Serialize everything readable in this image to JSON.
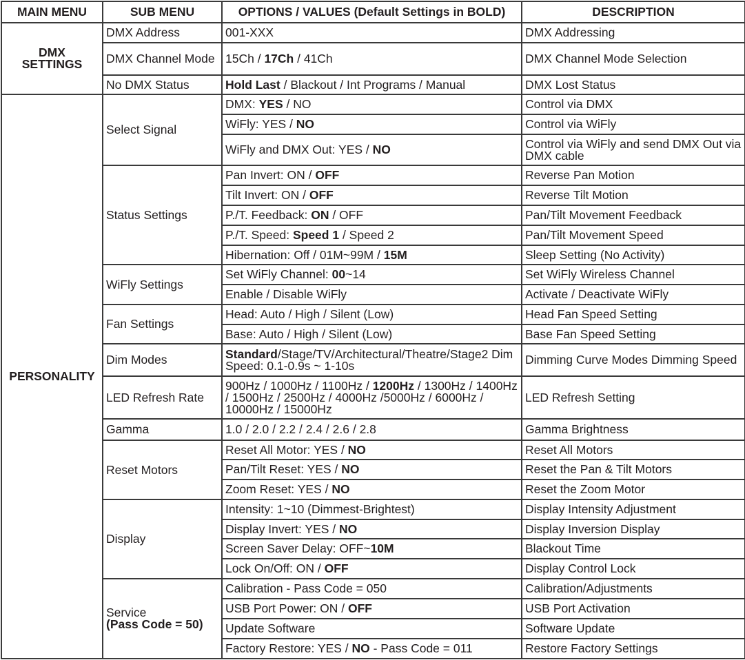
{
  "header": [
    "MAIN MENU",
    "SUB MENU",
    "OPTIONS / VALUES (Default Settings in BOLD)",
    "DESCRIPTION"
  ],
  "sections": [
    {
      "main": "DMX SETTINGS",
      "subs": [
        {
          "label": [
            {
              "t": "DMX Address"
            }
          ],
          "items": [
            {
              "option": [
                {
                  "t": "001-XXX"
                }
              ],
              "desc": "DMX Addressing"
            }
          ]
        },
        {
          "label": [
            {
              "t": "DMX Channel Mode"
            }
          ],
          "items": [
            {
              "option": [
                {
                  "t": "15Ch / "
                },
                {
                  "t": "17Ch",
                  "b": true
                },
                {
                  "t": " / 41Ch"
                }
              ],
              "desc": "DMX Channel Mode Selection"
            }
          ]
        },
        {
          "label": [
            {
              "t": "No DMX Status"
            }
          ],
          "items": [
            {
              "option": [
                {
                  "t": "Hold Last",
                  "b": true
                },
                {
                  "t": " / Blackout / Int Programs / Manual"
                }
              ],
              "desc": "DMX Lost Status"
            }
          ]
        }
      ]
    },
    {
      "main": "PERSONALITY",
      "subs": [
        {
          "label": [
            {
              "t": "Select Signal"
            }
          ],
          "items": [
            {
              "option": [
                {
                  "t": "DMX: "
                },
                {
                  "t": "YES",
                  "b": true
                },
                {
                  "t": " / NO"
                }
              ],
              "desc": "Control via DMX"
            },
            {
              "option": [
                {
                  "t": "WiFly: YES / "
                },
                {
                  "t": "NO",
                  "b": true
                }
              ],
              "desc": "Control via WiFly"
            },
            {
              "option": [
                {
                  "t": "WiFly and DMX Out: YES / "
                },
                {
                  "t": "NO",
                  "b": true
                }
              ],
              "desc": "Control via WiFly and send DMX Out via DMX cable"
            }
          ]
        },
        {
          "label": [
            {
              "t": "Status Settings"
            }
          ],
          "items": [
            {
              "option": [
                {
                  "t": "Pan Invert: ON / "
                },
                {
                  "t": "OFF",
                  "b": true
                }
              ],
              "desc": "Reverse Pan Motion"
            },
            {
              "option": [
                {
                  "t": "Tilt Invert: ON / "
                },
                {
                  "t": "OFF",
                  "b": true
                }
              ],
              "desc": "Reverse Tilt Motion"
            },
            {
              "option": [
                {
                  "t": "P./T. Feedback: "
                },
                {
                  "t": "ON",
                  "b": true
                },
                {
                  "t": " / OFF"
                }
              ],
              "desc": "Pan/Tilt Movement Feedback"
            },
            {
              "option": [
                {
                  "t": "P./T. Speed: "
                },
                {
                  "t": "Speed 1",
                  "b": true
                },
                {
                  "t": " / Speed 2"
                }
              ],
              "desc": "Pan/Tilt Movement Speed"
            },
            {
              "option": [
                {
                  "t": "Hibernation: Off / 01M~99M / "
                },
                {
                  "t": "15M",
                  "b": true
                }
              ],
              "desc": "Sleep Setting (No Activity)"
            }
          ]
        },
        {
          "label": [
            {
              "t": "WiFly Settings"
            }
          ],
          "items": [
            {
              "option": [
                {
                  "t": "Set WiFly Channel: "
                },
                {
                  "t": "00",
                  "b": true
                },
                {
                  "t": "~14"
                }
              ],
              "desc": "Set WiFly Wireless Channel"
            },
            {
              "option": [
                {
                  "t": "Enable / Disable WiFly"
                }
              ],
              "desc": "Activate / Deactivate WiFly"
            }
          ]
        },
        {
          "label": [
            {
              "t": "Fan Settings"
            }
          ],
          "items": [
            {
              "option": [
                {
                  "t": "Head: Auto / High / Silent (Low)"
                }
              ],
              "desc": "Head Fan Speed Setting"
            },
            {
              "option": [
                {
                  "t": "Base: Auto / High / Silent (Low)"
                }
              ],
              "desc": "Base Fan Speed Setting"
            }
          ]
        },
        {
          "label": [
            {
              "t": "Dim Modes"
            }
          ],
          "items": [
            {
              "option": [
                {
                  "t": "Standard",
                  "b": true
                },
                {
                  "t": "/Stage/TV/Architectural/Theatre/Stage2 Dim Speed: 0.1-0.9s ~ 1-10s"
                }
              ],
              "desc": "Dimming Curve Modes Dimming Speed"
            }
          ]
        },
        {
          "label": [
            {
              "t": "LED Refresh Rate"
            }
          ],
          "items": [
            {
              "option": [
                {
                  "t": "900Hz / 1000Hz / 1100Hz / "
                },
                {
                  "t": "1200Hz",
                  "b": true
                },
                {
                  "t": " / 1300Hz / 1400Hz / 1500Hz / 2500Hz / 4000Hz /5000Hz / 6000Hz / 10000Hz / 15000Hz"
                }
              ],
              "desc": "LED Refresh Setting"
            }
          ]
        },
        {
          "label": [
            {
              "t": "Gamma"
            }
          ],
          "items": [
            {
              "option": [
                {
                  "t": "1.0 / 2.0 / 2.2 / 2.4 / 2.6 / 2.8"
                }
              ],
              "desc": "Gamma Brightness"
            }
          ]
        },
        {
          "label": [
            {
              "t": "Reset Motors"
            }
          ],
          "items": [
            {
              "option": [
                {
                  "t": "Reset All Motor: YES / "
                },
                {
                  "t": "NO",
                  "b": true
                }
              ],
              "desc": "Reset All Motors"
            },
            {
              "option": [
                {
                  "t": "Pan/Tilt Reset: YES / "
                },
                {
                  "t": "NO",
                  "b": true
                }
              ],
              "desc": "Reset the Pan & Tilt Motors"
            },
            {
              "option": [
                {
                  "t": "Zoom Reset: YES / "
                },
                {
                  "t": "NO",
                  "b": true
                }
              ],
              "desc": "Reset the Zoom Motor"
            }
          ]
        },
        {
          "label": [
            {
              "t": "Display"
            }
          ],
          "items": [
            {
              "option": [
                {
                  "t": "Intensity: 1~10 (Dimmest-Brightest)"
                }
              ],
              "desc": "Display Intensity Adjustment"
            },
            {
              "option": [
                {
                  "t": "Display Invert: YES / "
                },
                {
                  "t": "NO",
                  "b": true
                }
              ],
              "desc": "Display Inversion Display"
            },
            {
              "option": [
                {
                  "t": "Screen Saver Delay: OFF~"
                },
                {
                  "t": "10M",
                  "b": true
                }
              ],
              "desc": "Blackout Time"
            },
            {
              "option": [
                {
                  "t": "Lock On/Off: ON / "
                },
                {
                  "t": "OFF",
                  "b": true
                }
              ],
              "desc": "Display Control Lock"
            }
          ]
        },
        {
          "label": [
            {
              "t": "Service"
            },
            {
              "t": "(Pass Code = 50)",
              "b": true,
              "br": true
            }
          ],
          "items": [
            {
              "option": [
                {
                  "t": "Calibration - Pass Code = 050"
                }
              ],
              "desc": "Calibration/Adjustments"
            },
            {
              "option": [
                {
                  "t": "USB Port Power: ON / "
                },
                {
                  "t": "OFF",
                  "b": true
                }
              ],
              "desc": "USB Port Activation"
            },
            {
              "option": [
                {
                  "t": "Update Software"
                }
              ],
              "desc": "Software Update"
            },
            {
              "option": [
                {
                  "t": "Factory Restore: YES / "
                },
                {
                  "t": "NO",
                  "b": true
                },
                {
                  "t": " - Pass Code = 011"
                }
              ],
              "desc": "Restore Factory Settings"
            }
          ]
        }
      ]
    }
  ]
}
